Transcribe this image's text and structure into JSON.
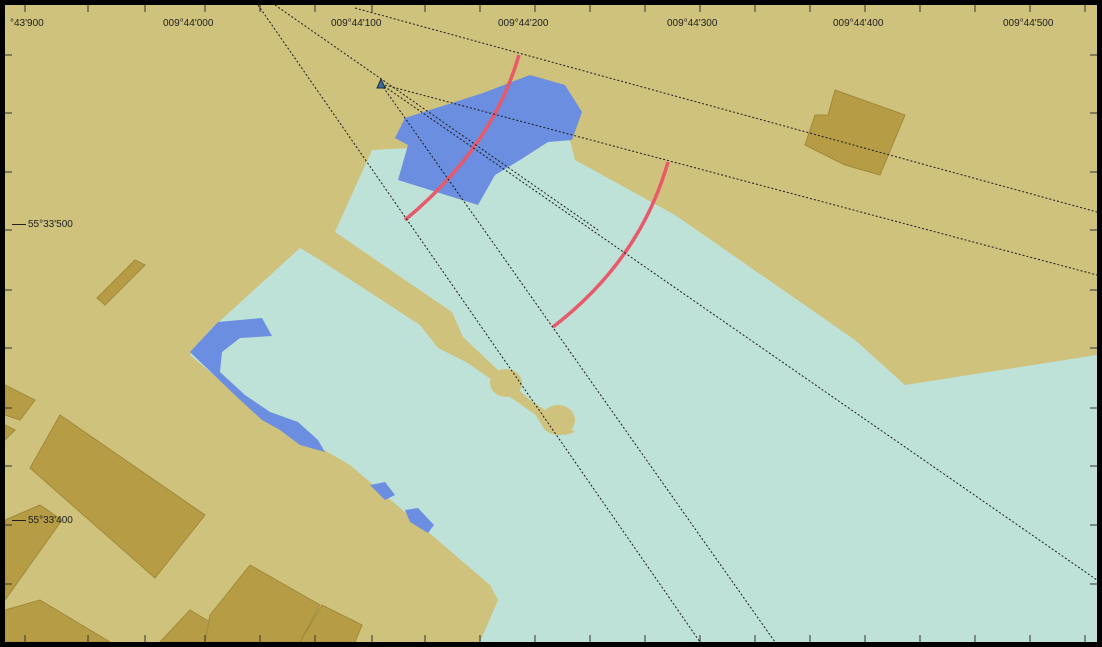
{
  "chart": {
    "longitude_labels": [
      "°43'900",
      "009°44'000",
      "009°44'100",
      "009°44'200",
      "009°44'300",
      "009°44'400",
      "009°44'500"
    ],
    "latitude_labels": [
      "55°33'500",
      "55°33'400"
    ],
    "colors": {
      "land": "#cfc27c",
      "buildings": "#b69c44",
      "water": "#bfe2d8",
      "shallow_water": "#6b8ee0",
      "sector_light": "#e8596a",
      "bearing_lines": "#1c1c1c",
      "frame": "#000000"
    },
    "symbols": [
      "light-beacon-icon"
    ]
  }
}
